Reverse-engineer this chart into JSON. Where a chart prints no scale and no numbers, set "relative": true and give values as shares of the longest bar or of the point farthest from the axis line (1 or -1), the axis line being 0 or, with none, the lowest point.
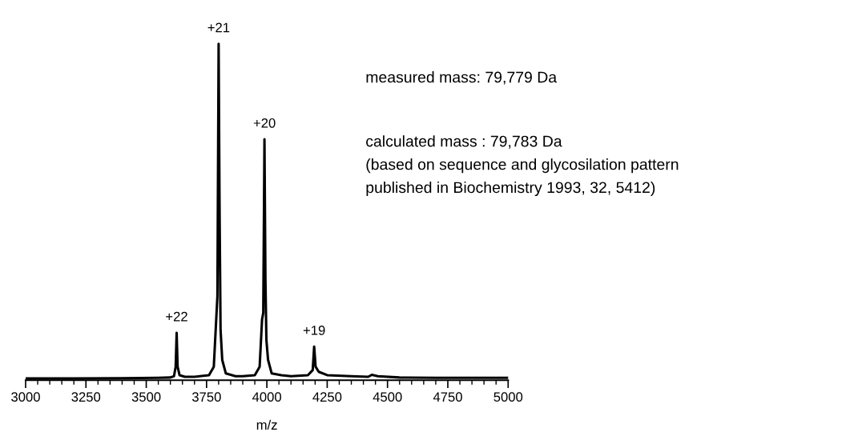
{
  "chart_data": {
    "type": "line",
    "relative": true,
    "xlabel": "m/z",
    "color": "#000000",
    "x": [
      3000,
      3200,
      3400,
      3550,
      3600,
      3615,
      3622,
      3626,
      3630,
      3638,
      3660,
      3700,
      3760,
      3780,
      3790,
      3795,
      3800,
      3804,
      3808,
      3815,
      3830,
      3870,
      3900,
      3950,
      3970,
      3980,
      3985,
      3990,
      3994,
      3998,
      4005,
      4020,
      4060,
      4100,
      4170,
      4190,
      4196,
      4202,
      4215,
      4250,
      4350,
      4420,
      4435,
      4460,
      4550,
      4700,
      4850,
      5000
    ],
    "values": [
      0.005,
      0.005,
      0.006,
      0.007,
      0.008,
      0.012,
      0.04,
      0.141,
      0.04,
      0.015,
      0.01,
      0.01,
      0.015,
      0.04,
      0.18,
      0.25,
      1.0,
      0.5,
      0.15,
      0.06,
      0.02,
      0.012,
      0.012,
      0.015,
      0.04,
      0.18,
      0.2,
      0.716,
      0.3,
      0.12,
      0.06,
      0.02,
      0.015,
      0.012,
      0.015,
      0.03,
      0.1,
      0.04,
      0.025,
      0.015,
      0.012,
      0.01,
      0.016,
      0.012,
      0.008,
      0.007,
      0.007,
      0.007
    ],
    "xlim": [
      3000,
      5000
    ],
    "xticks": [
      3000,
      {
        "value": 3050,
        "label": null
      },
      {
        "value": 3100,
        "label": null
      },
      {
        "value": 3150,
        "label": null
      },
      {
        "value": 3200,
        "label": null
      },
      3250,
      {
        "value": 3300,
        "label": null
      },
      {
        "value": 3350,
        "label": null
      },
      {
        "value": 3400,
        "label": null
      },
      {
        "value": 3450,
        "label": null
      },
      3500,
      {
        "value": 3550,
        "label": null
      },
      {
        "value": 3600,
        "label": null
      },
      {
        "value": 3650,
        "label": null
      },
      {
        "value": 3700,
        "label": null
      },
      3750,
      {
        "value": 3800,
        "label": null
      },
      {
        "value": 3850,
        "label": null
      },
      {
        "value": 3900,
        "label": null
      },
      {
        "value": 3950,
        "label": null
      },
      4000,
      {
        "value": 4050,
        "label": null
      },
      {
        "value": 4100,
        "label": null
      },
      {
        "value": 4150,
        "label": null
      },
      {
        "value": 4200,
        "label": null
      },
      4250,
      {
        "value": 4300,
        "label": null
      },
      {
        "value": 4350,
        "label": null
      },
      {
        "value": 4400,
        "label": null
      },
      {
        "value": 4450,
        "label": null
      },
      4500,
      {
        "value": 4550,
        "label": null
      },
      {
        "value": 4600,
        "label": null
      },
      {
        "value": 4650,
        "label": null
      },
      {
        "value": 4700,
        "label": null
      },
      4750,
      {
        "value": 4800,
        "label": null
      },
      {
        "value": 4850,
        "label": null
      },
      {
        "value": 4900,
        "label": null
      },
      {
        "value": 4950,
        "label": null
      },
      5000
    ],
    "annotations": [
      {
        "text": "+22",
        "x": 3626,
        "y": 0.141
      },
      {
        "text": "+21",
        "x": 3800,
        "y": 1.0
      },
      {
        "text": "+20",
        "x": 3990,
        "y": 0.716
      },
      {
        "text": "+19",
        "x": 4196,
        "y": 0.1
      },
      "measured mass: 79,779 Da",
      "calculated mass : 79,783 Da",
      "(based on sequence and glycosilation pattern",
      "published in Biochemistry 1993, 32, 5412)"
    ],
    "grid": false,
    "legend": false,
    "marker": "none",
    "line_style": "solid"
  }
}
